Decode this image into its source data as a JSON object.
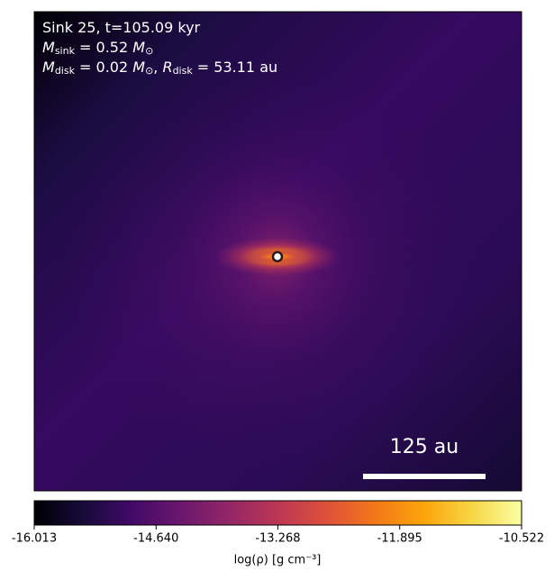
{
  "chart_data": {
    "type": "image",
    "colormap": "inferno",
    "annotation_lines": [
      [
        "Sink 25, t=105.09 kyr"
      ],
      [
        "M",
        "sink",
        " = 0.52 ",
        "M",
        "⊙"
      ],
      [
        "M",
        "disk",
        " = 0.02 ",
        "M",
        "⊙",
        ", ",
        "R",
        "disk",
        " = 53.11 au"
      ]
    ],
    "scale_bar_label": "125 au",
    "colorbar": {
      "label": "log(ρ) [g cm⁻³]",
      "xlim": [
        -16.013,
        -10.522
      ],
      "xticks": [
        -16.013,
        {
          "value": -14.64,
          "label": "-14.640"
        },
        -13.268,
        -11.895,
        -10.522
      ]
    }
  }
}
